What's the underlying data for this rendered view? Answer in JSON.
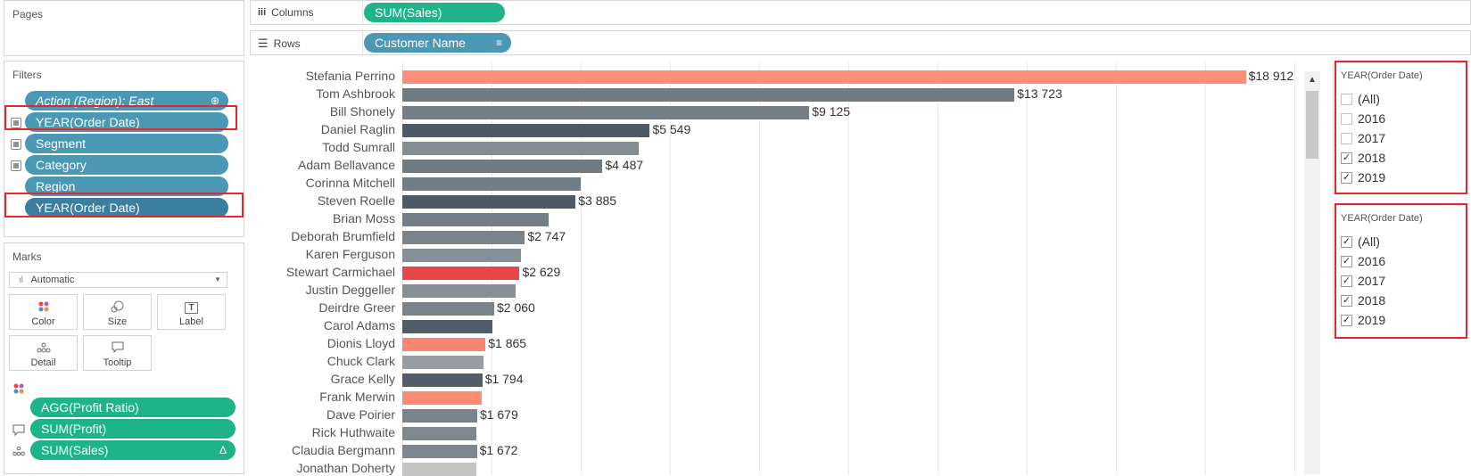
{
  "pages": {
    "title": "Pages"
  },
  "columns_shelf": {
    "label": "Columns",
    "pill": "SUM(Sales)"
  },
  "rows_shelf": {
    "label": "Rows",
    "pill": "Customer Name"
  },
  "filters": {
    "title": "Filters",
    "items": [
      {
        "label": "Action (Region): East"
      },
      {
        "label": "YEAR(Order Date)"
      },
      {
        "label": "Segment"
      },
      {
        "label": "Category"
      },
      {
        "label": "Region"
      },
      {
        "label": "YEAR(Order Date)"
      }
    ]
  },
  "marks": {
    "title": "Marks",
    "type": "Automatic",
    "buttons": [
      "Color",
      "Size",
      "Label",
      "Detail",
      "Tooltip"
    ],
    "fields": [
      {
        "label": "AGG(Profit Ratio)",
        "icon": "color-dots-icon"
      },
      {
        "label": "SUM(Profit)",
        "icon": "tooltip-icon"
      },
      {
        "label": "SUM(Sales)",
        "icon": "detail-icon",
        "suffix": "Δ"
      }
    ]
  },
  "chart_data": {
    "type": "bar",
    "orientation": "horizontal",
    "xlabel": "SUM(Sales)",
    "ylabel": "Customer Name",
    "xlim": [
      0,
      20000
    ],
    "categories": [
      "Stefania Perrino",
      "Tom Ashbrook",
      "Bill Shonely",
      "Daniel Raglin",
      "Todd Sumrall",
      "Adam Bellavance",
      "Corinna Mitchell",
      "Steven Roelle",
      "Brian Moss",
      "Deborah Brumfield",
      "Karen Ferguson",
      "Stewart Carmichael",
      "Justin Deggeller",
      "Deirdre Greer",
      "Carol Adams",
      "Dionis Lloyd",
      "Chuck Clark",
      "Grace Kelly",
      "Frank Merwin",
      "Dave Poirier",
      "Rick Huthwaite",
      "Claudia Bergmann",
      "Jonathan Doherty"
    ],
    "values": [
      18912,
      13723,
      9125,
      5549,
      5290,
      4487,
      4000,
      3885,
      3270,
      2747,
      2650,
      2629,
      2540,
      2060,
      2020,
      1865,
      1810,
      1794,
      1780,
      1679,
      1660,
      1672,
      1650
    ],
    "labels": [
      "$18 912",
      "$13 723",
      "$9 125",
      "$5 549",
      "",
      "$4 487",
      "",
      "$3 885",
      "",
      "$2 747",
      "",
      "$2 629",
      "",
      "$2 060",
      "",
      "$1 865",
      "",
      "$1 794",
      "",
      "$1 679",
      "",
      "$1 672",
      ""
    ],
    "colors": [
      "#fa9077",
      "#6f7a84",
      "#767f88",
      "#4f5967",
      "#848c95",
      "#6f7a84",
      "#737d87",
      "#4f5967",
      "#747e88",
      "#7a838c",
      "#868e97",
      "#e8474a",
      "#868e97",
      "#7a838c",
      "#525c6a",
      "#fa8670",
      "#969da4",
      "#525c6a",
      "#fb8b73",
      "#7a838c",
      "#7f8890",
      "#7e878f",
      "#c5c5c5"
    ]
  },
  "filter_card_1": {
    "title": "YEAR(Order Date)",
    "items": [
      {
        "label": "(All)",
        "checked": false
      },
      {
        "label": "2016",
        "checked": false
      },
      {
        "label": "2017",
        "checked": false
      },
      {
        "label": "2018",
        "checked": true
      },
      {
        "label": "2019",
        "checked": true
      }
    ]
  },
  "filter_card_2": {
    "title": "YEAR(Order Date)",
    "items": [
      {
        "label": "(All)",
        "checked": true
      },
      {
        "label": "2016",
        "checked": true
      },
      {
        "label": "2017",
        "checked": true
      },
      {
        "label": "2018",
        "checked": true
      },
      {
        "label": "2019",
        "checked": true
      }
    ]
  }
}
